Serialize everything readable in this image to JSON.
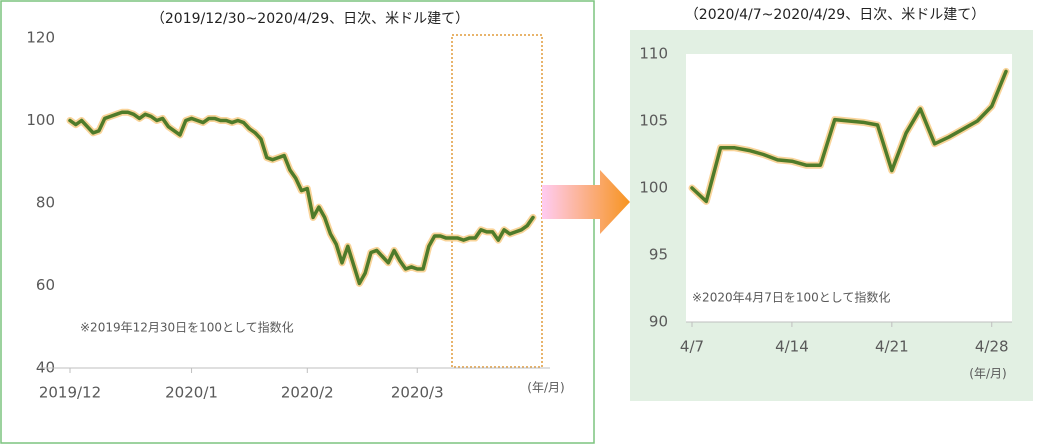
{
  "chart_data": [
    {
      "type": "line",
      "title": "（2019/12/30~2020/4/29、日次、米ドル建て）",
      "annotation": "※2019年12月30日を100として指数化",
      "x_unit": "(年/月)",
      "categories": [
        "2019/12",
        null,
        null,
        null,
        null,
        null,
        null,
        null,
        null,
        null,
        null,
        null,
        null,
        null,
        null,
        null,
        null,
        null,
        null,
        null,
        null,
        "2020/1",
        null,
        null,
        null,
        null,
        null,
        null,
        null,
        null,
        null,
        null,
        null,
        null,
        null,
        null,
        null,
        null,
        null,
        null,
        null,
        "2020/2",
        null,
        null,
        null,
        null,
        null,
        null,
        null,
        null,
        null,
        null,
        null,
        null,
        null,
        null,
        null,
        null,
        null,
        null,
        "2020/3",
        null,
        null,
        null,
        null,
        null,
        null,
        null,
        null,
        null,
        null,
        null,
        null,
        null,
        null,
        null,
        null,
        null,
        null,
        null,
        null
      ],
      "series": [
        {
          "color": "#4f7b2a",
          "halo_color": "#f9d49a",
          "values": [
            100,
            99,
            100,
            98.5,
            97,
            97.5,
            100.5,
            101,
            101.5,
            102,
            102,
            101.5,
            100.5,
            101.5,
            101,
            100,
            100.5,
            98.5,
            97.5,
            96.5,
            100,
            100.5,
            100,
            99.5,
            100.5,
            100.5,
            100,
            100,
            99.5,
            100,
            99.5,
            98,
            97,
            95.5,
            91,
            90.5,
            91,
            91.5,
            88,
            86,
            83,
            83.5,
            76.5,
            79,
            76.5,
            72.5,
            70,
            65.5,
            69.5,
            65,
            60.5,
            63,
            68,
            68.5,
            67,
            65.5,
            68.5,
            66,
            64,
            64.5,
            64,
            64,
            69.5,
            72,
            72,
            71.5,
            71.5,
            71.5,
            71,
            71.5,
            71.5,
            73.5,
            73,
            73,
            71,
            73.5,
            72.5,
            73,
            73.5,
            74.5,
            76.5
          ]
        }
      ],
      "ylim": [
        40,
        120
      ],
      "yticks": [
        40,
        60,
        80,
        100,
        120
      ],
      "grid": false
    },
    {
      "type": "line",
      "title": "（2020/4/7~2020/4/29、日次、米ドル建て）",
      "annotation": "※2020年4月7日を100として指数化",
      "x_unit": "(年/月)",
      "categories": [
        "4/7",
        null,
        null,
        null,
        null,
        null,
        null,
        "4/14",
        null,
        null,
        null,
        null,
        null,
        null,
        "4/21",
        null,
        null,
        null,
        null,
        null,
        null,
        "4/28",
        null
      ],
      "series": [
        {
          "color": "#4f7b2a",
          "halo_color": "#f9d49a",
          "values": [
            100,
            99,
            103,
            103,
            102.8,
            102.5,
            102.1,
            102,
            101.7,
            101.7,
            105.1,
            105,
            104.9,
            104.7,
            101.3,
            104.1,
            105.9,
            103.3,
            103.8,
            104.4,
            105,
            106.1,
            108.7
          ]
        }
      ],
      "ylim": [
        90,
        110
      ],
      "yticks": [
        90,
        95,
        100,
        105,
        110
      ],
      "grid": false
    }
  ]
}
